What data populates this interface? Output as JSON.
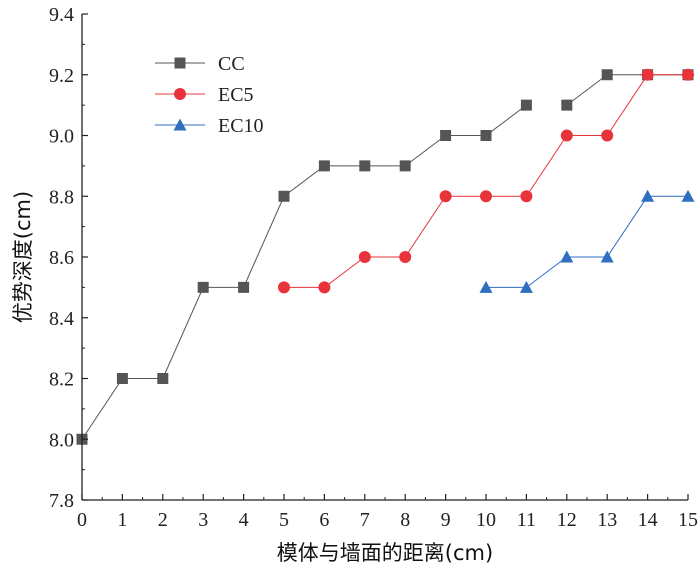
{
  "chart_data": {
    "type": "line",
    "xlabel": "模体与墙面的距离(cm)",
    "ylabel": "优势深度(cm)",
    "xlim": [
      0,
      15
    ],
    "ylim": [
      7.8,
      9.4
    ],
    "xticks": [
      "0",
      "1",
      "2",
      "3",
      "4",
      "5",
      "6",
      "7",
      "8",
      "9",
      "10",
      "11",
      "12",
      "13",
      "14",
      "15"
    ],
    "yticks": [
      "7.8",
      "8.0",
      "8.2",
      "8.4",
      "8.6",
      "8.8",
      "9.0",
      "9.2",
      "9.4"
    ],
    "grid": false,
    "legend_position": "top-left",
    "series": [
      {
        "name": "CC",
        "color": "#555555",
        "marker": "square",
        "segments": [
          {
            "x": [
              0,
              1,
              2,
              3,
              4,
              5,
              6,
              7,
              8,
              9,
              10,
              11
            ],
            "y": [
              8.0,
              8.2,
              8.2,
              8.5,
              8.5,
              8.8,
              8.9,
              8.9,
              8.9,
              9.0,
              9.0,
              9.1
            ]
          },
          {
            "x": [
              12,
              13,
              14,
              15
            ],
            "y": [
              9.1,
              9.2,
              9.2,
              9.2
            ]
          }
        ]
      },
      {
        "name": "EC5",
        "color": "#e8333a",
        "marker": "circle",
        "segments": [
          {
            "x": [
              5,
              6,
              7,
              8,
              9,
              10,
              11,
              12,
              13,
              14,
              15
            ],
            "y": [
              8.5,
              8.5,
              8.6,
              8.6,
              8.8,
              8.8,
              8.8,
              9.0,
              9.0,
              9.2,
              9.2
            ]
          }
        ]
      },
      {
        "name": "EC10",
        "color": "#2f6fc0",
        "marker": "triangle",
        "segments": [
          {
            "x": [
              10,
              11,
              12,
              13,
              14,
              15
            ],
            "y": [
              8.5,
              8.5,
              8.6,
              8.6,
              8.8,
              8.8
            ]
          }
        ]
      }
    ]
  }
}
